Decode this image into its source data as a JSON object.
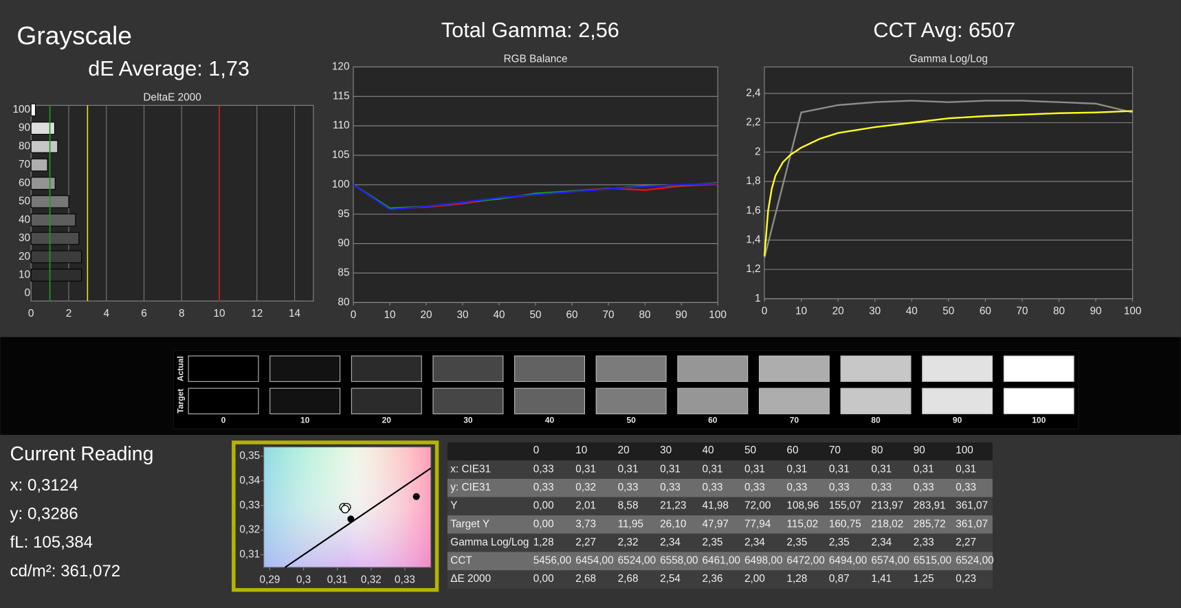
{
  "header": {
    "title": "Grayscale",
    "de_average": "dE Average: 1,73",
    "total_gamma": "Total Gamma: 2,56",
    "cct_avg": "CCT Avg: 6507"
  },
  "chart_data": [
    {
      "type": "barh",
      "title": "DeltaE 2000",
      "categories": [
        0,
        10,
        20,
        30,
        40,
        50,
        60,
        70,
        80,
        90,
        100
      ],
      "values": [
        0,
        2.68,
        2.68,
        2.54,
        2.36,
        2.0,
        1.28,
        0.87,
        1.41,
        1.25,
        0.23
      ],
      "colors": [
        "#1e1e1e",
        "#2e2e2e",
        "#3c3c3c",
        "#4c4c4c",
        "#5e5e5e",
        "#787878",
        "#949494",
        "#aeaeae",
        "#c6c6c6",
        "#dedede",
        "#f6f6f6"
      ],
      "xlim": [
        0,
        15
      ],
      "xticks": [
        0,
        2,
        4,
        6,
        8,
        10,
        12,
        14
      ],
      "grid": true,
      "reference_lines": [
        {
          "value": 1,
          "color": "#1f9a1f"
        },
        {
          "value": 3,
          "color": "#e6e619"
        },
        {
          "value": 10,
          "color": "#e01818"
        }
      ]
    },
    {
      "type": "line",
      "title": "RGB Balance",
      "x": [
        0,
        10,
        20,
        30,
        40,
        50,
        60,
        70,
        80,
        90,
        100
      ],
      "series": [
        {
          "color": "#e81010",
          "values": [
            100,
            96,
            96.2,
            96.8,
            97.7,
            98.3,
            98.9,
            99.4,
            99.1,
            99.8,
            100.1
          ]
        },
        {
          "color": "#10b010",
          "values": [
            100,
            96,
            96.3,
            97,
            97.6,
            98.5,
            98.9,
            99.3,
            99.8,
            99.9,
            100.3
          ]
        },
        {
          "color": "#2020ee",
          "values": [
            100,
            95.8,
            96.3,
            97,
            97.8,
            98.3,
            98.8,
            99.3,
            99.7,
            100,
            100.2
          ]
        }
      ],
      "xlim": [
        0,
        100
      ],
      "ylim": [
        80,
        120
      ],
      "xticks": [
        0,
        10,
        20,
        30,
        40,
        50,
        60,
        70,
        80,
        90,
        100
      ],
      "yticks": [
        80,
        85,
        90,
        95,
        100,
        105,
        110,
        115,
        120
      ],
      "grid": true
    },
    {
      "type": "line",
      "title": "Gamma Log/Log",
      "series": [
        {
          "color": "#8c8c8c",
          "x": [
            0,
            10,
            20,
            30,
            40,
            50,
            60,
            70,
            80,
            90,
            100
          ],
          "values": [
            1.28,
            2.27,
            2.32,
            2.34,
            2.35,
            2.34,
            2.35,
            2.35,
            2.34,
            2.33,
            2.27
          ]
        },
        {
          "color": "#ffff1e",
          "x": [
            0,
            1,
            2,
            3,
            5,
            7,
            10,
            15,
            20,
            25,
            30,
            40,
            50,
            60,
            70,
            80,
            90,
            100
          ],
          "values": [
            1.29,
            1.6,
            1.75,
            1.84,
            1.93,
            1.98,
            2.03,
            2.09,
            2.13,
            2.15,
            2.17,
            2.2,
            2.23,
            2.245,
            2.255,
            2.265,
            2.27,
            2.28
          ]
        }
      ],
      "xlim": [
        0,
        100
      ],
      "ylim": [
        1,
        2.58
      ],
      "xticks": [
        0,
        10,
        20,
        30,
        40,
        50,
        60,
        70,
        80,
        90,
        100
      ],
      "yticks": [
        1,
        {
          "value": 1.2,
          "label": "1,2"
        },
        {
          "value": 1.4,
          "label": "1,4"
        },
        {
          "value": 1.6,
          "label": "1,6"
        },
        {
          "value": 1.8,
          "label": "1,8"
        },
        2,
        {
          "value": 2.2,
          "label": "2,2"
        },
        {
          "value": 2.4,
          "label": "2,4"
        }
      ],
      "grid": true
    },
    {
      "type": "scatter",
      "series": [
        {
          "color": "#ffffff",
          "x": [
            0.3118,
            0.3128,
            0.3123
          ],
          "y": [
            0.3293,
            0.3293,
            0.3285
          ]
        },
        {
          "color": "#000000",
          "x": [
            0.314,
            0.3334
          ],
          "y": [
            0.3245,
            0.3336
          ]
        }
      ],
      "locus": {
        "x": [
          0.2945,
          0.3377
        ],
        "y": [
          0.3049,
          0.3451
        ]
      },
      "xlim": [
        0.2882,
        0.3377
      ],
      "ylim": [
        0.3049,
        0.3537
      ],
      "xticks": [
        {
          "value": 0.29,
          "label": "0,29"
        },
        {
          "value": 0.3,
          "label": "0,3"
        },
        {
          "value": 0.31,
          "label": "0,31"
        },
        {
          "value": 0.32,
          "label": "0,32"
        },
        {
          "value": 0.33,
          "label": "0,33"
        }
      ],
      "yticks": [
        {
          "value": 0.31,
          "label": "0,31"
        },
        {
          "value": 0.32,
          "label": "0,32"
        },
        {
          "value": 0.33,
          "label": "0,33"
        },
        {
          "value": 0.34,
          "label": "0,34"
        },
        {
          "value": 0.35,
          "label": "0,35"
        }
      ]
    }
  ],
  "swatches": {
    "rows": [
      "Actual",
      "Target"
    ],
    "levels": [
      0,
      10,
      20,
      30,
      40,
      50,
      60,
      70,
      80,
      90,
      100
    ],
    "actual_colors": [
      "#000000",
      "#121212",
      "#2b2b2b",
      "#464646",
      "#626262",
      "#7b7b7b",
      "#969696",
      "#adadad",
      "#c7c7c7",
      "#e2e2e2",
      "#ffffff"
    ],
    "target_colors": [
      "#000000",
      "#121212",
      "#2b2b2b",
      "#464646",
      "#626262",
      "#7b7b7b",
      "#969696",
      "#adadad",
      "#c7c7c7",
      "#e2e2e2",
      "#ffffff"
    ]
  },
  "reading": {
    "title": "Current Reading",
    "lines": [
      "x: 0,3124",
      "y: 0,3286",
      "fL: 105,384",
      "cd/m²: 361,072"
    ]
  },
  "table": {
    "header": [
      "0",
      "10",
      "20",
      "30",
      "40",
      "50",
      "60",
      "70",
      "80",
      "90",
      "100"
    ],
    "rows": [
      [
        "x: CIE31",
        "0,33",
        "0,31",
        "0,31",
        "0,31",
        "0,31",
        "0,31",
        "0,31",
        "0,31",
        "0,31",
        "0,31",
        "0,31"
      ],
      [
        "y: CIE31",
        "0,33",
        "0,32",
        "0,33",
        "0,33",
        "0,33",
        "0,33",
        "0,33",
        "0,33",
        "0,33",
        "0,33",
        "0,33"
      ],
      [
        "Y",
        "0,00",
        "2,01",
        "8,58",
        "21,23",
        "41,98",
        "72,00",
        "108,96",
        "155,07",
        "213,97",
        "283,91",
        "361,07"
      ],
      [
        "Target Y",
        "0,00",
        "3,73",
        "11,95",
        "26,10",
        "47,97",
        "77,94",
        "115,02",
        "160,75",
        "218,02",
        "285,72",
        "361,07"
      ],
      [
        "Gamma Log/Log",
        "1,28",
        "2,27",
        "2,32",
        "2,34",
        "2,35",
        "2,34",
        "2,35",
        "2,35",
        "2,34",
        "2,33",
        "2,27"
      ],
      [
        "CCT",
        "5456,00",
        "6454,00",
        "6524,00",
        "6558,00",
        "6461,00",
        "6498,00",
        "6472,00",
        "6494,00",
        "6574,00",
        "6515,00",
        "6524,00"
      ],
      [
        "ΔE 2000",
        "0,00",
        "2,68",
        "2,68",
        "2,54",
        "2,36",
        "2,00",
        "1,28",
        "0,87",
        "1,41",
        "1,25",
        "0,23"
      ]
    ]
  }
}
